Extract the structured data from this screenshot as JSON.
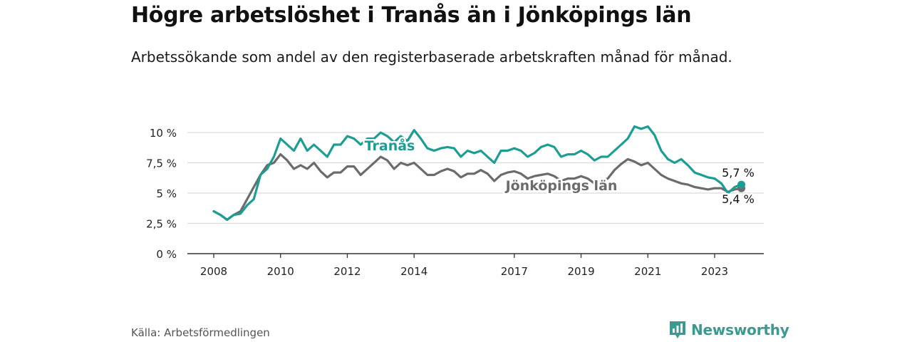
{
  "title": "Högre arbetslöshet i Tranås än i Jönköpings län",
  "subtitle": "Arbetssökande som andel av den registerbaserade arbetskraften månad för månad.",
  "source": "Källa: Arbetsförmedlingen",
  "brand": {
    "name": "Newsworthy",
    "icon": "newsworthy-logo-icon"
  },
  "chart_data": {
    "type": "line",
    "title": "Högre arbetslöshet i Tranås än i Jönköpings län",
    "xlabel": "",
    "ylabel": "",
    "xlim": [
      2008.0,
      2024.2
    ],
    "ylim": [
      0,
      10
    ],
    "yticks": [
      {
        "value": 0,
        "label": "0 %"
      },
      {
        "value": 2.5,
        "label": "2,5 %"
      },
      {
        "value": 5,
        "label": "5 %"
      },
      {
        "value": 7.5,
        "label": "7,5 %"
      },
      {
        "value": 10,
        "label": "10 %"
      }
    ],
    "xticks": [
      {
        "value": 2008,
        "label": "2008"
      },
      {
        "value": 2010,
        "label": "2010"
      },
      {
        "value": 2012,
        "label": "2012"
      },
      {
        "value": 2014,
        "label": "2014"
      },
      {
        "value": 2017,
        "label": "2017"
      },
      {
        "value": 2019,
        "label": "2019"
      },
      {
        "value": 2021,
        "label": "2021"
      },
      {
        "value": 2023,
        "label": "2023"
      }
    ],
    "grid": true,
    "series": [
      {
        "name": "Tranås",
        "color": "#1a9e94",
        "end_label": "5,7 %",
        "points": [
          [
            2008.0,
            3.5
          ],
          [
            2008.2,
            3.2
          ],
          [
            2008.4,
            2.8
          ],
          [
            2008.6,
            3.2
          ],
          [
            2008.8,
            3.3
          ],
          [
            2009.0,
            4.0
          ],
          [
            2009.2,
            4.5
          ],
          [
            2009.4,
            6.5
          ],
          [
            2009.6,
            7.0
          ],
          [
            2009.8,
            8.0
          ],
          [
            2010.0,
            9.5
          ],
          [
            2010.2,
            9.0
          ],
          [
            2010.4,
            8.5
          ],
          [
            2010.6,
            9.5
          ],
          [
            2010.8,
            8.5
          ],
          [
            2011.0,
            9.0
          ],
          [
            2011.2,
            8.5
          ],
          [
            2011.4,
            8.0
          ],
          [
            2011.6,
            9.0
          ],
          [
            2011.8,
            9.0
          ],
          [
            2012.0,
            9.7
          ],
          [
            2012.2,
            9.5
          ],
          [
            2012.4,
            9.0
          ],
          [
            2012.6,
            9.5
          ],
          [
            2012.8,
            9.5
          ],
          [
            2013.0,
            10.0
          ],
          [
            2013.2,
            9.7
          ],
          [
            2013.4,
            9.2
          ],
          [
            2013.6,
            9.7
          ],
          [
            2013.8,
            9.3
          ],
          [
            2014.0,
            10.2
          ],
          [
            2014.2,
            9.5
          ],
          [
            2014.4,
            8.7
          ],
          [
            2014.6,
            8.5
          ],
          [
            2014.8,
            8.7
          ],
          [
            2015.0,
            8.8
          ],
          [
            2015.2,
            8.7
          ],
          [
            2015.4,
            8.0
          ],
          [
            2015.6,
            8.5
          ],
          [
            2015.8,
            8.3
          ],
          [
            2016.0,
            8.5
          ],
          [
            2016.2,
            8.0
          ],
          [
            2016.4,
            7.5
          ],
          [
            2016.6,
            8.5
          ],
          [
            2016.8,
            8.5
          ],
          [
            2017.0,
            8.7
          ],
          [
            2017.2,
            8.5
          ],
          [
            2017.4,
            8.0
          ],
          [
            2017.6,
            8.3
          ],
          [
            2017.8,
            8.8
          ],
          [
            2018.0,
            9.0
          ],
          [
            2018.2,
            8.8
          ],
          [
            2018.4,
            8.0
          ],
          [
            2018.6,
            8.2
          ],
          [
            2018.8,
            8.2
          ],
          [
            2019.0,
            8.5
          ],
          [
            2019.2,
            8.2
          ],
          [
            2019.4,
            7.7
          ],
          [
            2019.6,
            8.0
          ],
          [
            2019.8,
            8.0
          ],
          [
            2020.0,
            8.5
          ],
          [
            2020.2,
            9.0
          ],
          [
            2020.4,
            9.5
          ],
          [
            2020.6,
            10.5
          ],
          [
            2020.8,
            10.3
          ],
          [
            2021.0,
            10.5
          ],
          [
            2021.2,
            9.8
          ],
          [
            2021.4,
            8.5
          ],
          [
            2021.6,
            7.8
          ],
          [
            2021.8,
            7.5
          ],
          [
            2022.0,
            7.8
          ],
          [
            2022.2,
            7.3
          ],
          [
            2022.4,
            6.7
          ],
          [
            2022.6,
            6.5
          ],
          [
            2022.8,
            6.3
          ],
          [
            2023.0,
            6.2
          ],
          [
            2023.2,
            5.8
          ],
          [
            2023.4,
            5.0
          ],
          [
            2023.6,
            5.5
          ],
          [
            2023.8,
            5.7
          ]
        ]
      },
      {
        "name": "Jönköpings län",
        "color": "#6b6b6b",
        "end_label": "5,4 %",
        "points": [
          [
            2008.0,
            3.5
          ],
          [
            2008.2,
            3.2
          ],
          [
            2008.4,
            2.8
          ],
          [
            2008.6,
            3.2
          ],
          [
            2008.8,
            3.5
          ],
          [
            2009.0,
            4.5
          ],
          [
            2009.2,
            5.5
          ],
          [
            2009.4,
            6.5
          ],
          [
            2009.6,
            7.3
          ],
          [
            2009.8,
            7.5
          ],
          [
            2010.0,
            8.2
          ],
          [
            2010.2,
            7.7
          ],
          [
            2010.4,
            7.0
          ],
          [
            2010.6,
            7.3
          ],
          [
            2010.8,
            7.0
          ],
          [
            2011.0,
            7.5
          ],
          [
            2011.2,
            6.8
          ],
          [
            2011.4,
            6.3
          ],
          [
            2011.6,
            6.7
          ],
          [
            2011.8,
            6.7
          ],
          [
            2012.0,
            7.2
          ],
          [
            2012.2,
            7.2
          ],
          [
            2012.4,
            6.5
          ],
          [
            2012.6,
            7.0
          ],
          [
            2012.8,
            7.5
          ],
          [
            2013.0,
            8.0
          ],
          [
            2013.2,
            7.7
          ],
          [
            2013.4,
            7.0
          ],
          [
            2013.6,
            7.5
          ],
          [
            2013.8,
            7.3
          ],
          [
            2014.0,
            7.5
          ],
          [
            2014.2,
            7.0
          ],
          [
            2014.4,
            6.5
          ],
          [
            2014.6,
            6.5
          ],
          [
            2014.8,
            6.8
          ],
          [
            2015.0,
            7.0
          ],
          [
            2015.2,
            6.8
          ],
          [
            2015.4,
            6.3
          ],
          [
            2015.6,
            6.6
          ],
          [
            2015.8,
            6.6
          ],
          [
            2016.0,
            6.9
          ],
          [
            2016.2,
            6.6
          ],
          [
            2016.4,
            6.0
          ],
          [
            2016.6,
            6.5
          ],
          [
            2016.8,
            6.7
          ],
          [
            2017.0,
            6.8
          ],
          [
            2017.2,
            6.6
          ],
          [
            2017.4,
            6.2
          ],
          [
            2017.6,
            6.4
          ],
          [
            2017.8,
            6.5
          ],
          [
            2018.0,
            6.6
          ],
          [
            2018.2,
            6.4
          ],
          [
            2018.4,
            6.0
          ],
          [
            2018.6,
            6.2
          ],
          [
            2018.8,
            6.2
          ],
          [
            2019.0,
            6.4
          ],
          [
            2019.2,
            6.2
          ],
          [
            2019.4,
            5.8
          ],
          [
            2019.6,
            6.0
          ],
          [
            2019.8,
            6.2
          ],
          [
            2020.0,
            6.9
          ],
          [
            2020.2,
            7.4
          ],
          [
            2020.4,
            7.8
          ],
          [
            2020.6,
            7.6
          ],
          [
            2020.8,
            7.3
          ],
          [
            2021.0,
            7.5
          ],
          [
            2021.2,
            7.0
          ],
          [
            2021.4,
            6.5
          ],
          [
            2021.6,
            6.2
          ],
          [
            2021.8,
            6.0
          ],
          [
            2022.0,
            5.8
          ],
          [
            2022.2,
            5.7
          ],
          [
            2022.4,
            5.5
          ],
          [
            2022.6,
            5.4
          ],
          [
            2022.8,
            5.3
          ],
          [
            2023.0,
            5.4
          ],
          [
            2023.2,
            5.4
          ],
          [
            2023.4,
            5.1
          ],
          [
            2023.6,
            5.3
          ],
          [
            2023.8,
            5.4
          ]
        ]
      }
    ]
  }
}
